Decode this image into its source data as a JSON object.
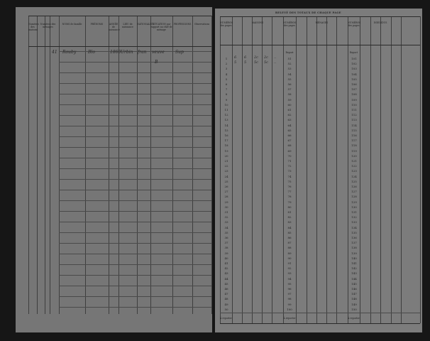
{
  "left_page": {
    "headers": [
      "Numéros des maisons",
      "Numéros des ménages",
      "NOMS de famille",
      "PRÉNOMS",
      "ANNÉE de naissance",
      "LIEU de naissance",
      "NATIONALITÉ",
      "SITUATION par rapport au chef de ménage",
      "PROFESSIONS",
      "Observations"
    ],
    "entry": {
      "number": "41",
      "name": "Rouby",
      "first_name": "Blo",
      "year": "1860",
      "birthplace": "Urbin",
      "nationality": "fran",
      "situation": "veuve",
      "profession": "Sup",
      "mark": "B"
    }
  },
  "right_page": {
    "title": "RELEVÉ DES TOTAUX DE CHAQUE PAGE",
    "group_headers": [
      "NUMÉROS des pages",
      "MAISONS",
      "NUMÉROS des pages",
      "MÉNAGES",
      "NUMÉROS des pages",
      "INDIVIDUS"
    ],
    "report_label": "Report",
    "bottom_label": "À reporter",
    "pages_col1": [
      1,
      2,
      3,
      4,
      5,
      6,
      7,
      8,
      9,
      10,
      11,
      12,
      13,
      14,
      15,
      16,
      17,
      18,
      19,
      20,
      21,
      22,
      23,
      24,
      25,
      26,
      27,
      28,
      29,
      30,
      31,
      32,
      33,
      34,
      35,
      36,
      37,
      38,
      39,
      40,
      41,
      42,
      43,
      44,
      45,
      46,
      47,
      48,
      49,
      50
    ],
    "pages_col2": [
      51,
      52,
      53,
      54,
      55,
      56,
      57,
      58,
      59,
      60,
      61,
      62,
      63,
      64,
      65,
      66,
      67,
      68,
      69,
      70,
      71,
      72,
      73,
      74,
      75,
      76,
      77,
      78,
      79,
      80,
      81,
      82,
      83,
      84,
      85,
      86,
      87,
      88,
      89,
      90,
      91,
      92,
      93,
      94,
      95,
      96,
      97,
      98,
      99,
      100
    ],
    "pages_col3": [
      101,
      102,
      103,
      104,
      105,
      106,
      107,
      108,
      109,
      110,
      111,
      112,
      113,
      114,
      115,
      116,
      117,
      118,
      119,
      120,
      121,
      122,
      123,
      124,
      125,
      126,
      127,
      128,
      129,
      130,
      131,
      132,
      133,
      134,
      135,
      136,
      137,
      138,
      139,
      140,
      141,
      142,
      143,
      144,
      145,
      146,
      147,
      148,
      149,
      150
    ],
    "handwritten_rows": [
      [
        "6",
        "6",
        "2c",
        "2c",
        ".."
      ],
      [
        "5",
        "5",
        "5c",
        "5c",
        ".."
      ]
    ]
  }
}
